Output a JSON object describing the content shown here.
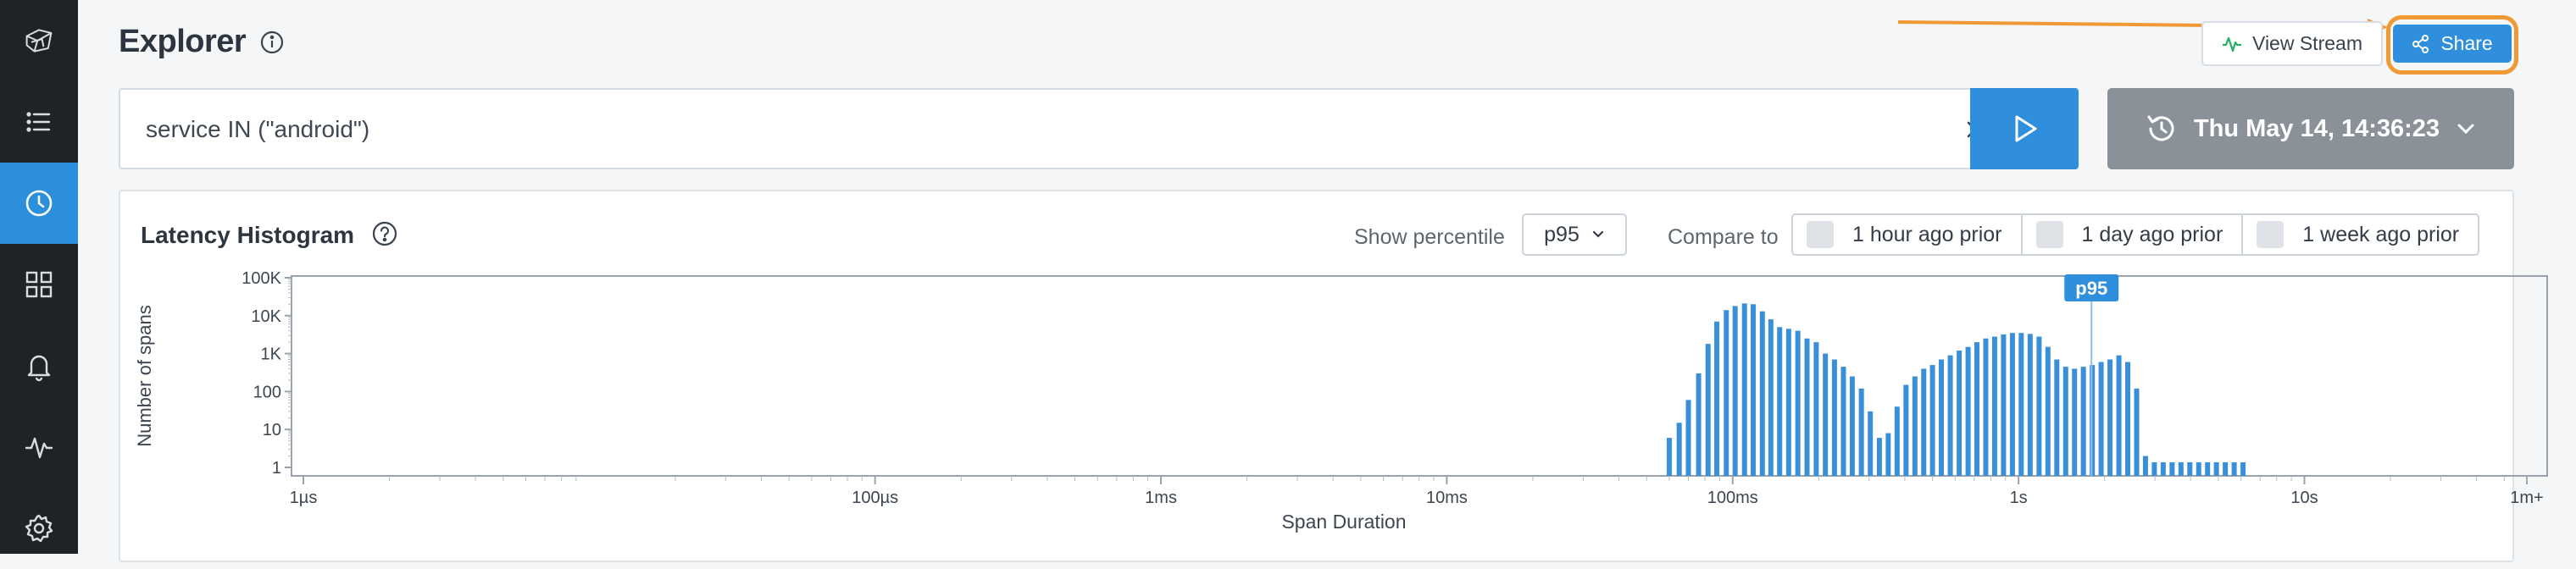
{
  "app": {
    "title": "Explorer"
  },
  "sidebar": {
    "items": [
      {
        "icon": "logo-icon",
        "active": false
      },
      {
        "icon": "list-icon",
        "active": false
      },
      {
        "icon": "clock-icon",
        "active": true
      },
      {
        "icon": "grid-icon",
        "active": false
      },
      {
        "icon": "bell-icon",
        "active": false
      },
      {
        "icon": "activity-icon",
        "active": false
      },
      {
        "icon": "gear-icon",
        "active": false
      }
    ]
  },
  "header": {
    "view_stream_label": "View Stream",
    "share_label": "Share"
  },
  "query": {
    "value": "service IN (\"android\")"
  },
  "time_picker": {
    "label": "Thu May 14, 14:36:23"
  },
  "histogram": {
    "title": "Latency Histogram",
    "show_percentile_label": "Show percentile",
    "percentile_value": "p95",
    "compare_label": "Compare to",
    "compare_options": [
      "1 hour ago prior",
      "1 day ago prior",
      "1 week ago prior"
    ]
  },
  "colors": {
    "accent": "#2f8fdd",
    "highlight": "#ef9a37",
    "sidebar": "#1e2328",
    "bar": "#3a8fd9"
  },
  "chart_data": {
    "type": "bar",
    "xlabel": "Span Duration",
    "ylabel": "Number of spans",
    "x_scale": "log",
    "y_scale": "log",
    "x_ticks": [
      "1µs",
      "100µs",
      "1ms",
      "10ms",
      "100ms",
      "1s",
      "10s",
      "1m+"
    ],
    "y_ticks": [
      "100K",
      "10K",
      "1K",
      "100",
      "10",
      "1"
    ],
    "marker": {
      "label": "p95",
      "x": "1.8s"
    },
    "series": [
      {
        "x_ms": [
          60,
          65,
          70,
          76,
          82,
          88,
          95,
          102,
          110,
          118,
          127,
          136,
          146,
          157,
          169,
          182,
          196,
          211,
          227,
          244,
          262,
          282,
          303,
          326,
          350,
          376,
          404,
          434,
          466,
          500,
          537,
          577,
          620,
          666,
          715,
          768,
          825,
          886,
          952,
          1022,
          1098,
          1180,
          1267,
          1361,
          1462,
          1570,
          1686,
          1811,
          1945,
          2089,
          2244,
          2410,
          2589,
          2780,
          2986,
          3207,
          3445,
          3700,
          3974,
          4268,
          4584,
          4923,
          5288,
          5680,
          6100
        ],
        "counts": [
          6,
          15,
          60,
          300,
          1800,
          7000,
          14000,
          18000,
          21000,
          20000,
          13000,
          8000,
          5000,
          4500,
          4000,
          2500,
          2000,
          1000,
          700,
          450,
          250,
          120,
          30,
          6,
          8,
          40,
          150,
          250,
          400,
          500,
          700,
          900,
          1200,
          1500,
          2000,
          2500,
          2800,
          3200,
          3500,
          3500,
          3300,
          2800,
          1500,
          700,
          450,
          400,
          450,
          500,
          600,
          700,
          900,
          600,
          120,
          2,
          1,
          1,
          1,
          1,
          1,
          1,
          1,
          1,
          1,
          1,
          1
        ]
      }
    ]
  }
}
